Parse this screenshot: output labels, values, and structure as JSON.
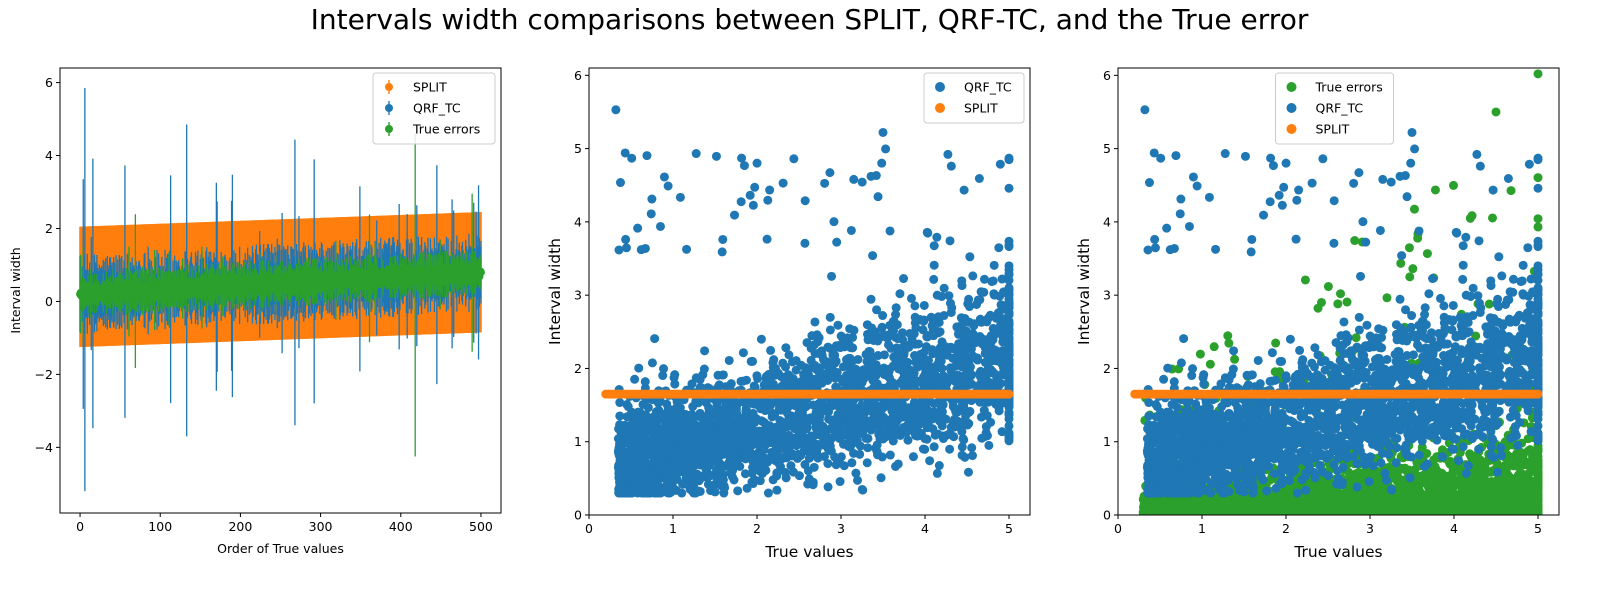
{
  "title": "Intervals width comparisons between SPLIT, QRF-TC, and the True error",
  "colors": {
    "split": "#ff7f0e",
    "qrf": "#1f77b4",
    "true_err": "#2ca02c",
    "axis": "#000000"
  },
  "chart_data": [
    {
      "type": "errorbar",
      "xlabel": "Order of True values",
      "ylabel": "Interval width",
      "xlim": [
        -25,
        525
      ],
      "ylim": [
        -5.8,
        6.4
      ],
      "xticks": [
        0,
        100,
        200,
        300,
        400,
        500
      ],
      "yticks": [
        -4,
        -2,
        0,
        2,
        4,
        6
      ],
      "legend": {
        "location": "top-right",
        "entries": [
          "SPLIT",
          "QRF_TC",
          "True errors"
        ]
      },
      "n_points": 500,
      "series": [
        {
          "name": "SPLIT",
          "color": "#ff7f0e",
          "center_start": 0.4,
          "center_end": 0.8,
          "halfwidth": 1.65
        },
        {
          "name": "QRF_TC",
          "color": "#1f77b4",
          "center_start": 0.2,
          "center_end": 0.8,
          "typical_halfwidth": 1.0,
          "max_high": 5.85,
          "min_low": -5.2
        },
        {
          "name": "True errors",
          "color": "#2ca02c",
          "center_start": 0.2,
          "center_end": 0.8,
          "typical_halfwidth": 0.6,
          "max_high": 4.6,
          "min_low": -4.25
        }
      ]
    },
    {
      "type": "scatter",
      "xlabel": "True values",
      "ylabel": "Interval width",
      "xlim": [
        0,
        5.25
      ],
      "ylim": [
        0,
        6.1
      ],
      "xticks": [
        0,
        1,
        2,
        3,
        4,
        5
      ],
      "yticks": [
        0,
        1,
        2,
        3,
        4,
        5,
        6
      ],
      "legend": {
        "location": "top-right",
        "entries": [
          "QRF_TC",
          "SPLIT"
        ]
      },
      "series": [
        {
          "name": "QRF_TC",
          "color": "#1f77b4",
          "n_points": 2600,
          "x_range": [
            0.2,
            5.0
          ],
          "y_range": [
            0.3,
            5.55
          ]
        },
        {
          "name": "SPLIT",
          "color": "#ff7f0e",
          "x_range": [
            0.2,
            5.0
          ],
          "constant_y": 1.65
        }
      ]
    },
    {
      "type": "scatter",
      "xlabel": "True values",
      "ylabel": "Interval width",
      "xlim": [
        0,
        5.25
      ],
      "ylim": [
        0,
        6.1
      ],
      "xticks": [
        0,
        1,
        2,
        3,
        4,
        5
      ],
      "yticks": [
        0,
        1,
        2,
        3,
        4,
        5,
        6
      ],
      "legend": {
        "location": "top-center",
        "entries": [
          "True errors",
          "QRF_TC",
          "SPLIT"
        ]
      },
      "series": [
        {
          "name": "True errors",
          "color": "#2ca02c",
          "n_points": 2600,
          "x_range": [
            0.2,
            5.0
          ],
          "y_range": [
            0,
            6.1
          ]
        },
        {
          "name": "QRF_TC",
          "color": "#1f77b4",
          "n_points": 2600,
          "x_range": [
            0.2,
            5.0
          ],
          "y_range": [
            0.3,
            5.55
          ]
        },
        {
          "name": "SPLIT",
          "color": "#ff7f0e",
          "x_range": [
            0.2,
            5.0
          ],
          "constant_y": 1.65
        }
      ]
    }
  ]
}
